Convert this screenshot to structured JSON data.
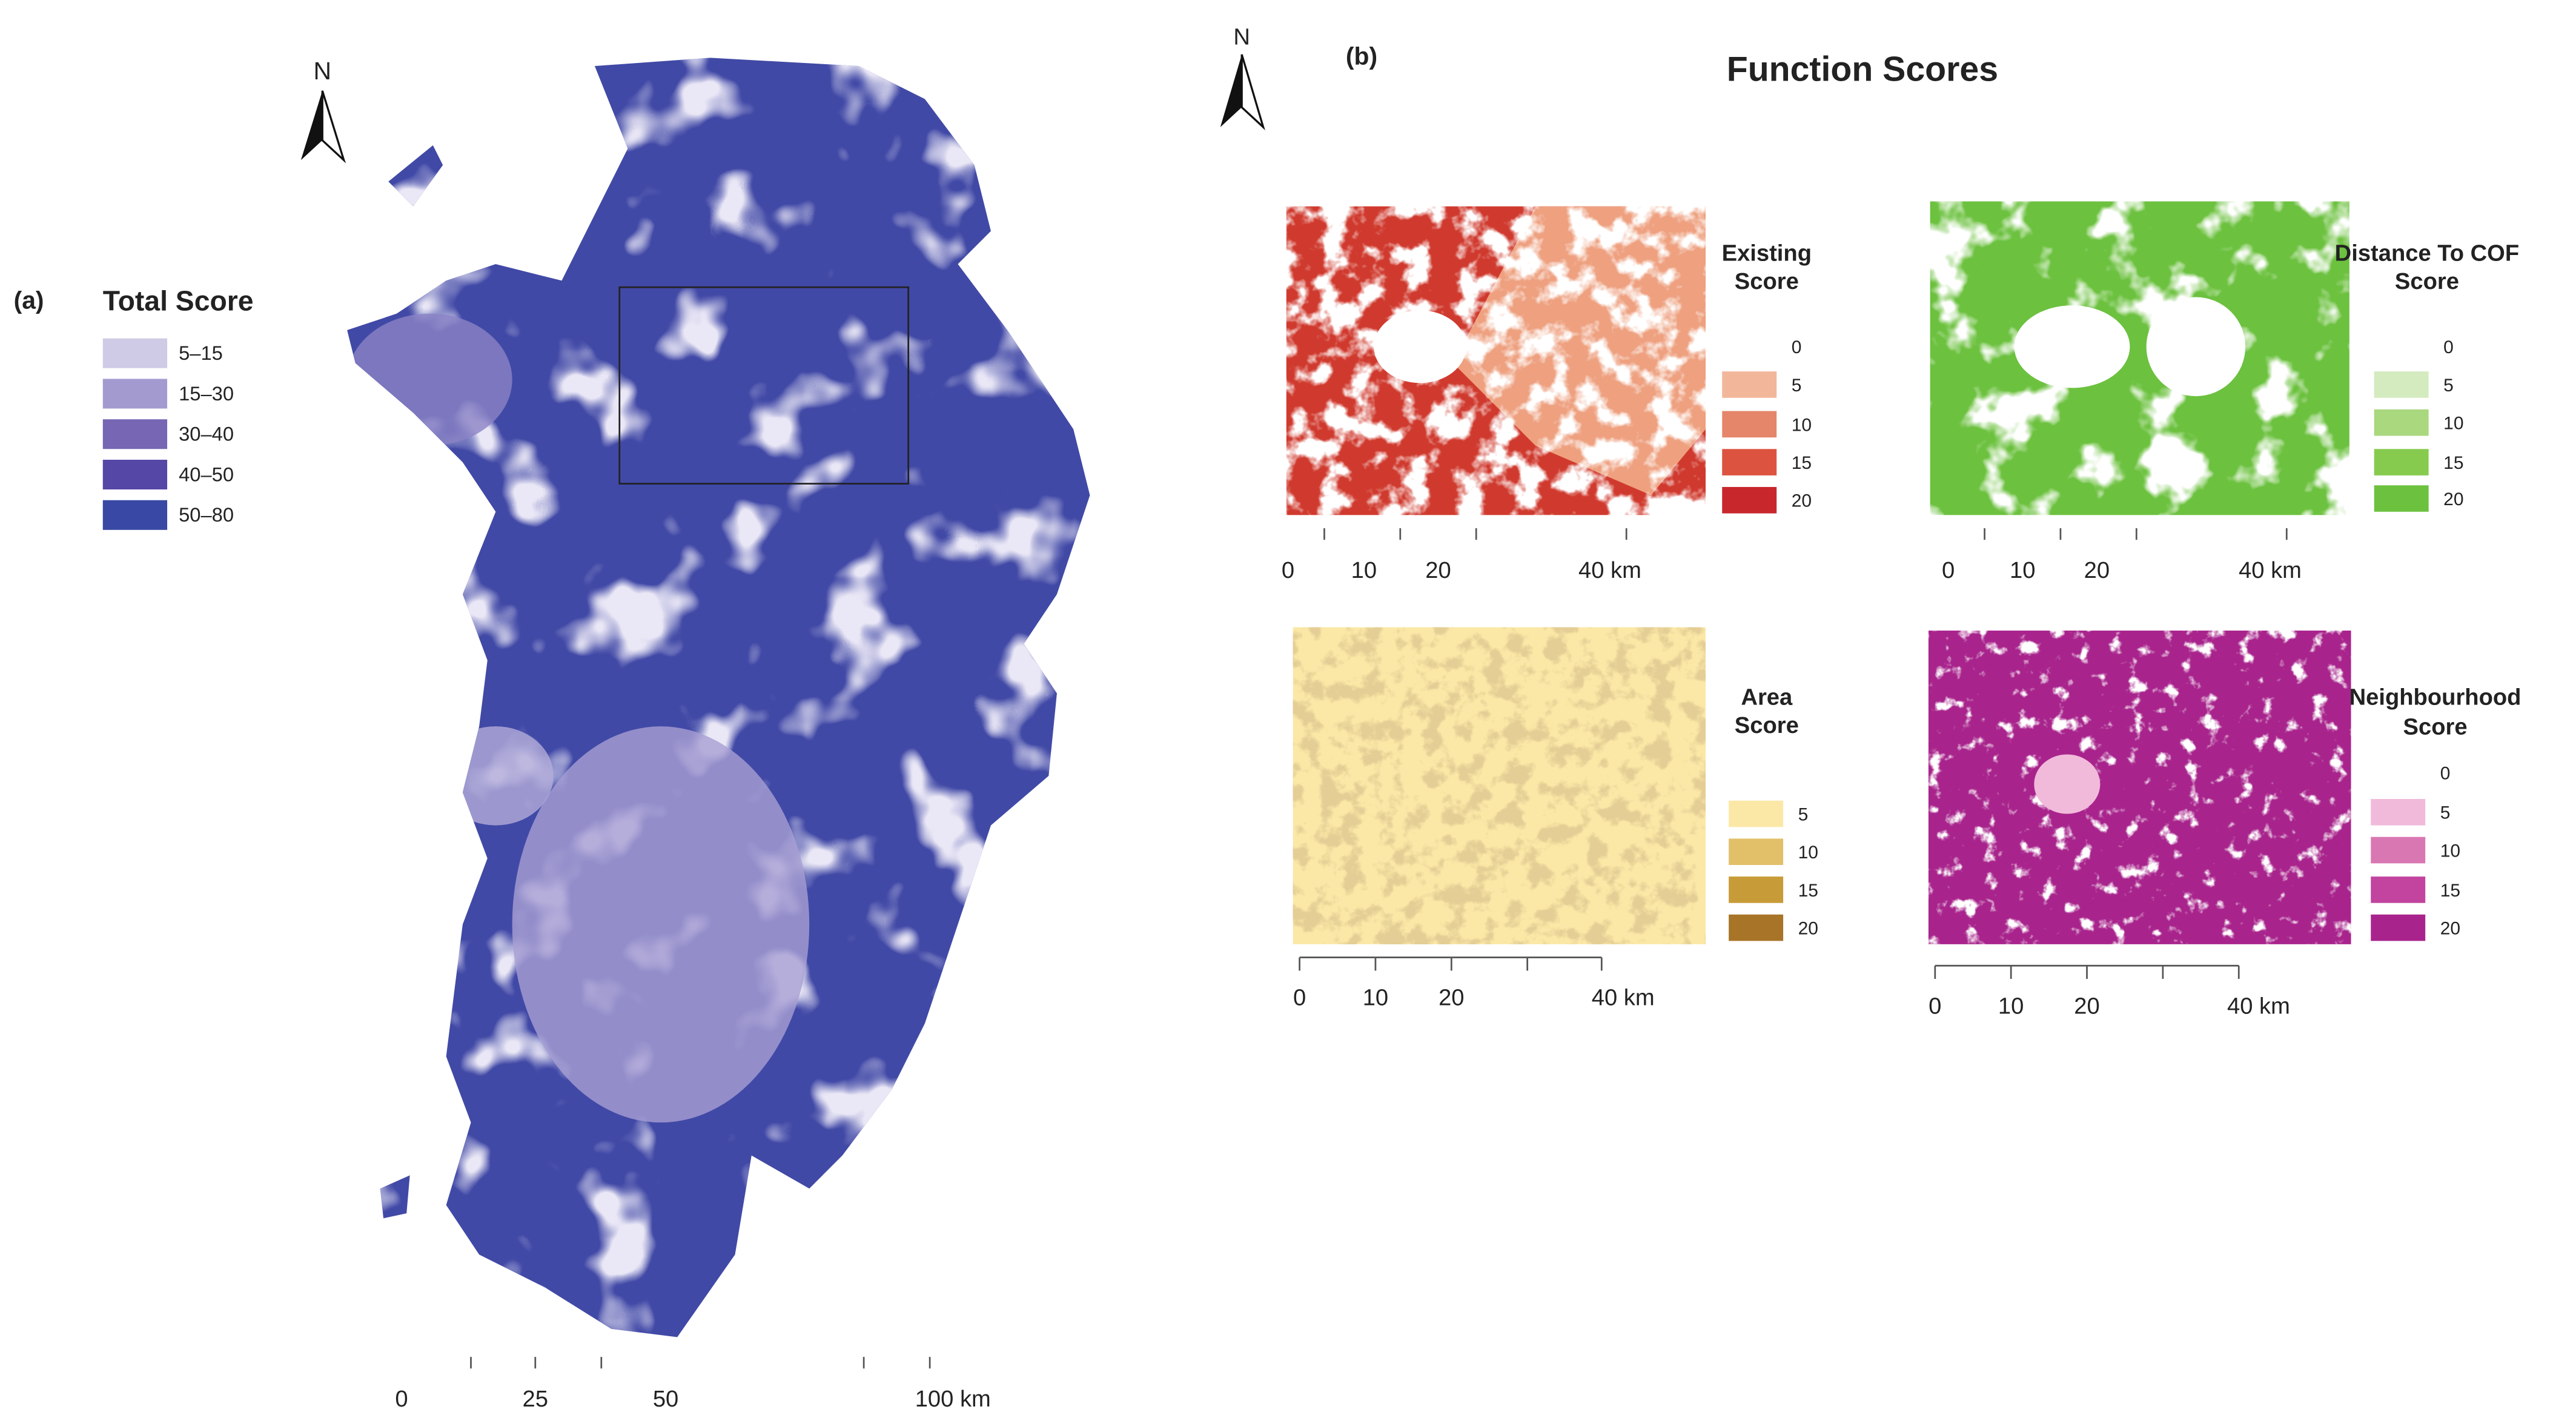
{
  "panel_a": {
    "label": "(a)",
    "north": "N",
    "legend": {
      "title": "Total Score",
      "items": [
        {
          "label": "5–15",
          "color": "#cfcbe6"
        },
        {
          "label": "15–30",
          "color": "#a39bd0"
        },
        {
          "label": "30–40",
          "color": "#7666b4"
        },
        {
          "label": "40–50",
          "color": "#5547a6"
        },
        {
          "label": "50–80",
          "color": "#3848a4"
        }
      ]
    },
    "scale_labels": [
      "0",
      "25",
      "50",
      "100 km"
    ]
  },
  "panel_b": {
    "label": "(b)",
    "title": "Function Scores",
    "north": "N",
    "maps": [
      {
        "legend_title": [
          "Existing",
          "Score"
        ],
        "items": [
          {
            "label": "0",
            "color": "#ffffff"
          },
          {
            "label": "5",
            "color": "#f2b79a"
          },
          {
            "label": "10",
            "color": "#e5866a"
          },
          {
            "label": "15",
            "color": "#dc5340"
          },
          {
            "label": "20",
            "color": "#c8272c"
          }
        ],
        "scale_labels": [
          "0",
          "10",
          "20",
          "40 km"
        ]
      },
      {
        "legend_title": [
          "Distance To COF",
          "Score"
        ],
        "items": [
          {
            "label": "0",
            "color": "#ffffff"
          },
          {
            "label": "5",
            "color": "#d4ebc0"
          },
          {
            "label": "10",
            "color": "#a9d87e"
          },
          {
            "label": "15",
            "color": "#86cb4e"
          },
          {
            "label": "20",
            "color": "#6cc13f"
          }
        ],
        "scale_labels": [
          "0",
          "10",
          "20",
          "40 km"
        ]
      },
      {
        "legend_title": [
          "Area",
          "Score"
        ],
        "items": [
          {
            "label": "5",
            "color": "#fbe8a6"
          },
          {
            "label": "10",
            "color": "#e2c06a"
          },
          {
            "label": "15",
            "color": "#c79b37"
          },
          {
            "label": "20",
            "color": "#a77428"
          }
        ],
        "scale_labels": [
          "0",
          "10",
          "20",
          "40 km"
        ]
      },
      {
        "legend_title": [
          "Neighbourhood",
          "Score"
        ],
        "items": [
          {
            "label": "0",
            "color": "#ffffff"
          },
          {
            "label": "5",
            "color": "#f1bada"
          },
          {
            "label": "10",
            "color": "#d977b3"
          },
          {
            "label": "15",
            "color": "#c2449f"
          },
          {
            "label": "20",
            "color": "#a8248c"
          }
        ],
        "scale_labels": [
          "0",
          "10",
          "20",
          "40 km"
        ]
      }
    ]
  }
}
